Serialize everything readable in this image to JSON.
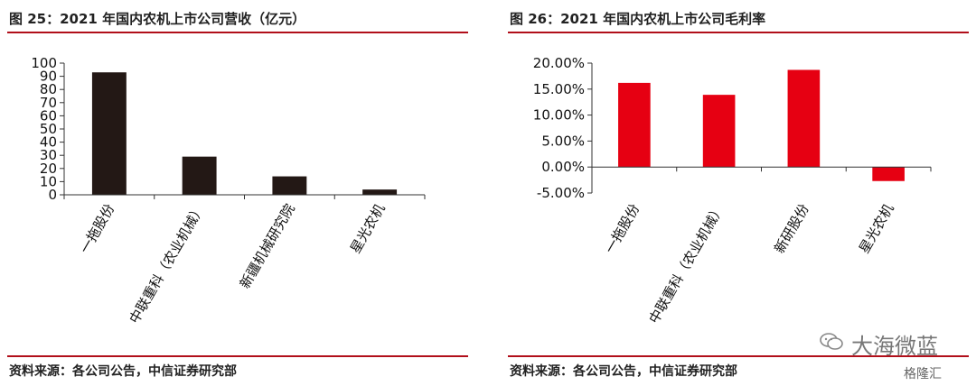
{
  "left": {
    "title": "图 25：2021 年国内农机上市公司营收（亿元）",
    "source": "资料来源：各公司公告，中信证券研究部"
  },
  "right": {
    "title": "图 26：2021 年国内农机上市公司毛利率",
    "source": "资料来源：各公司公告，中信证券研究部"
  },
  "watermark": {
    "text": "大海微蓝",
    "brand": "格隆汇"
  },
  "chart_data": [
    {
      "type": "bar",
      "title": "图 25：2021 年国内农机上市公司营收（亿元）",
      "categories": [
        "一拖股份",
        "中联重科（农业机械）",
        "新疆机械研究院",
        "星光农机"
      ],
      "values": [
        93,
        29,
        14,
        4
      ],
      "ylim": [
        0,
        100
      ],
      "yticks": [
        0,
        10,
        20,
        30,
        40,
        50,
        60,
        70,
        80,
        90,
        100
      ],
      "ytick_labels": [
        "0",
        "10",
        "20",
        "30",
        "40",
        "50",
        "60",
        "70",
        "80",
        "90",
        "100"
      ],
      "bar_color": "#231815",
      "grid": false
    },
    {
      "type": "bar",
      "title": "图 26：2021 年国内农机上市公司毛利率",
      "categories": [
        "一拖股份",
        "中联重科（农业机械）",
        "新研股份",
        "星光农机"
      ],
      "values": [
        16.2,
        13.9,
        18.7,
        -2.7
      ],
      "ylim": [
        -5,
        20
      ],
      "yticks": [
        -5,
        0,
        5,
        10,
        15,
        20
      ],
      "ytick_labels": [
        "-5.00%",
        "0.00%",
        "5.00%",
        "10.00%",
        "15.00%",
        "20.00%"
      ],
      "bar_color": "#e60012",
      "grid": false
    }
  ]
}
